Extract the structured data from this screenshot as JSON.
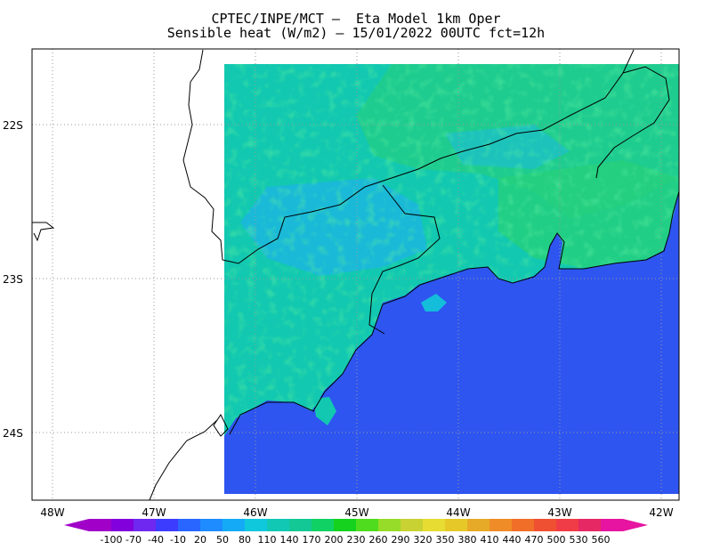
{
  "title": {
    "line1": "CPTEC/INPE/MCT –  Eta Model 1km Oper",
    "line2": "Sensible heat (W/m2) – 15/01/2022 00UTC fct=12h"
  },
  "map": {
    "lat_labels": [
      "22S",
      "23S",
      "24S"
    ],
    "lon_labels": [
      "48W",
      "47W",
      "46W",
      "45W",
      "44W",
      "43W",
      "42W"
    ],
    "ocean_color": "#2e55f0",
    "land_colors": [
      "#12c8b0",
      "#22cd8a",
      "#10c8c0",
      "#24a8f0",
      "#30d060",
      "#14bedb"
    ],
    "grid": "dotted"
  },
  "colorbar": {
    "labels": [
      "-100",
      "-70",
      "-40",
      "-10",
      "20",
      "50",
      "80",
      "110",
      "140",
      "170",
      "200",
      "230",
      "260",
      "290",
      "320",
      "350",
      "380",
      "410",
      "440",
      "470",
      "500",
      "530",
      "560"
    ],
    "colors": [
      "#a000c8",
      "#8200dc",
      "#6e28f0",
      "#3c3cff",
      "#2866ff",
      "#1e8cff",
      "#14aaf5",
      "#10c8dc",
      "#10c8b4",
      "#14c896",
      "#10d264",
      "#14d21e",
      "#50dc1e",
      "#96dc28",
      "#c8d232",
      "#e6dc32",
      "#e6c828",
      "#e6aa28",
      "#f08c28",
      "#f06e28",
      "#f05032",
      "#f03c46",
      "#e62864",
      "#e614a0"
    ]
  }
}
